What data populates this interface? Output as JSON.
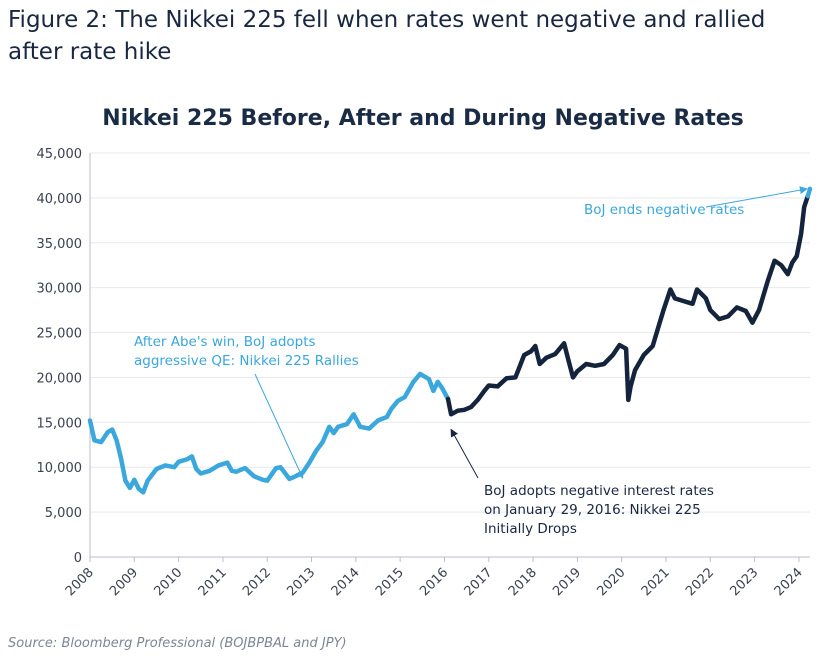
{
  "figure_heading": "Figure 2: The Nikkei 225 fell when rates went negative and rallied after rate hike",
  "source_note": "Source: Bloomberg Professional (BOJBPBAL and JPY)",
  "colors": {
    "before": "#3aa7dd",
    "negative": "#15243d",
    "grid": "#e6e9ee",
    "axis": "#b9bec7"
  },
  "chart_data": {
    "type": "line",
    "title": "Nikkei 225 Before, After and During Negative Rates",
    "xlabel": "",
    "ylabel": "",
    "xlim": [
      2008,
      2024.25
    ],
    "ylim": [
      0,
      45000
    ],
    "x_ticks": [
      "2008",
      "2009",
      "2010",
      "2011",
      "2012",
      "2013",
      "2014",
      "2015",
      "2016",
      "2017",
      "2018",
      "2019",
      "2020",
      "2021",
      "2022",
      "2023",
      "2024"
    ],
    "y_ticks": [
      "0",
      "5,000",
      "10,000",
      "15,000",
      "20,000",
      "25,000",
      "30,000",
      "35,000",
      "40,000",
      "45,000"
    ],
    "y_tick_values": [
      0,
      5000,
      10000,
      15000,
      20000,
      25000,
      30000,
      35000,
      40000,
      45000
    ],
    "grid": true,
    "legend": "none",
    "series": [
      {
        "segment": "before-negative-rates",
        "color": "#3aa7dd",
        "x": [
          2008.0,
          2008.1,
          2008.25,
          2008.4,
          2008.5,
          2008.6,
          2008.7,
          2008.8,
          2008.9,
          2009.0,
          2009.1,
          2009.2,
          2009.3,
          2009.5,
          2009.7,
          2009.9,
          2010.0,
          2010.2,
          2010.3,
          2010.4,
          2010.5,
          2010.7,
          2010.9,
          2011.1,
          2011.2,
          2011.3,
          2011.5,
          2011.7,
          2011.9,
          2012.0,
          2012.2,
          2012.3,
          2012.5,
          2012.6,
          2012.8,
          2012.95,
          2013.1,
          2013.25,
          2013.4,
          2013.5,
          2013.6,
          2013.8,
          2013.95,
          2014.1,
          2014.3,
          2014.5,
          2014.7,
          2014.8,
          2014.95,
          2015.1,
          2015.3,
          2015.45,
          2015.55,
          2015.65,
          2015.75,
          2015.85,
          2015.95,
          2016.08
        ],
        "values": [
          15200,
          13000,
          12800,
          13900,
          14200,
          13000,
          11000,
          8500,
          7700,
          8600,
          7600,
          7200,
          8500,
          9800,
          10200,
          10000,
          10600,
          10900,
          11200,
          9800,
          9300,
          9600,
          10200,
          10500,
          9600,
          9500,
          9900,
          9000,
          8600,
          8500,
          9900,
          10000,
          8700,
          8900,
          9400,
          10500,
          11800,
          12800,
          14500,
          13800,
          14500,
          14800,
          15900,
          14500,
          14300,
          15200,
          15600,
          16500,
          17400,
          17800,
          19500,
          20400,
          20100,
          19800,
          18500,
          19500,
          18800,
          17600
        ]
      },
      {
        "segment": "negative-rates",
        "color": "#15243d",
        "x": [
          2016.08,
          2016.15,
          2016.3,
          2016.45,
          2016.6,
          2016.75,
          2016.9,
          2017.0,
          2017.2,
          2017.4,
          2017.6,
          2017.8,
          2017.95,
          2018.05,
          2018.15,
          2018.3,
          2018.5,
          2018.7,
          2018.8,
          2018.9,
          2019.0,
          2019.2,
          2019.4,
          2019.6,
          2019.8,
          2019.95,
          2020.1,
          2020.15,
          2020.2,
          2020.3,
          2020.5,
          2020.7,
          2020.85,
          2020.95,
          2021.1,
          2021.2,
          2021.4,
          2021.6,
          2021.7,
          2021.9,
          2022.0,
          2022.2,
          2022.4,
          2022.6,
          2022.8,
          2022.95,
          2023.1,
          2023.3,
          2023.45,
          2023.6,
          2023.75,
          2023.85,
          2023.95,
          2024.05,
          2024.12,
          2024.2
        ],
        "values": [
          17600,
          15900,
          16300,
          16400,
          16700,
          17500,
          18500,
          19100,
          19000,
          19900,
          20000,
          22500,
          22900,
          23500,
          21500,
          22200,
          22600,
          23800,
          21900,
          20000,
          20700,
          21500,
          21300,
          21500,
          22500,
          23600,
          23200,
          17500,
          19000,
          20800,
          22500,
          23500,
          26000,
          27600,
          29800,
          28800,
          28500,
          28200,
          29800,
          28800,
          27500,
          26500,
          26800,
          27800,
          27400,
          26100,
          27500,
          30800,
          33000,
          32500,
          31500,
          32800,
          33500,
          36000,
          39000,
          40200
        ]
      },
      {
        "segment": "after-rate-hike",
        "color": "#3aa7dd",
        "x": [
          2024.2,
          2024.25
        ],
        "values": [
          40200,
          41000
        ]
      }
    ],
    "annotations": [
      {
        "id": "abe",
        "lines": [
          "After Abe's win, BoJ adopts",
          "aggressive QE: Nikkei 225 Rallies"
        ],
        "color": "#3aa7dd",
        "point": [
          2012.8,
          8800
        ]
      },
      {
        "id": "negative",
        "lines": [
          "BoJ adopts negative interest rates",
          "on January 29, 2016: Nikkei 225",
          "Initially Drops"
        ],
        "color": "#1a2740",
        "point": [
          2016.15,
          14200
        ]
      },
      {
        "id": "end",
        "lines": [
          "BoJ ends negative rates"
        ],
        "color": "#3aa7dd",
        "point": [
          2024.18,
          41000
        ]
      }
    ]
  }
}
